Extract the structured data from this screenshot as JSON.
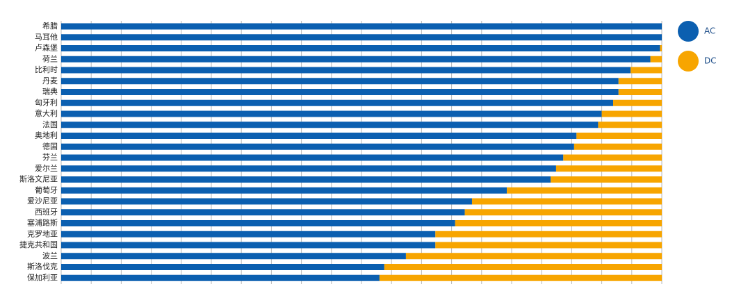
{
  "chart_data": {
    "type": "bar",
    "orientation": "horizontal",
    "stacked": true,
    "categories": [
      "希腊",
      "马耳他",
      "卢森堡",
      "荷兰",
      "比利时",
      "丹麦",
      "瑞典",
      "匈牙利",
      "意大利",
      "法国",
      "奥地利",
      "德国",
      "芬兰",
      "爱尔兰",
      "斯洛文尼亚",
      "葡萄牙",
      "爱沙尼亚",
      "西班牙",
      "塞浦路斯",
      "克罗地亚",
      "捷克共和国",
      "波兰",
      "斯洛伐克",
      "保加利亚"
    ],
    "series": [
      {
        "name": "AC",
        "color": "#0b5fb0",
        "values": [
          100,
          100,
          99.7,
          98.1,
          94.8,
          92.8,
          92.8,
          91.9,
          90.0,
          89.4,
          85.8,
          85.4,
          83.6,
          82.4,
          81.5,
          74.2,
          68.4,
          67.2,
          65.6,
          62.3,
          62.3,
          57.4,
          53.8,
          53.0
        ]
      },
      {
        "name": "DC",
        "color": "#f7a500",
        "values": [
          0,
          0,
          0.3,
          1.9,
          5.2,
          7.2,
          7.2,
          8.1,
          10.0,
          10.6,
          14.2,
          14.6,
          16.4,
          17.6,
          18.5,
          25.8,
          31.6,
          32.8,
          34.4,
          37.7,
          37.7,
          42.6,
          46.2,
          47.0
        ]
      }
    ],
    "xlim": [
      0,
      100
    ],
    "xticks": [
      0,
      5,
      10,
      15,
      20,
      25,
      30,
      35,
      40,
      45,
      50,
      55,
      60,
      65,
      70,
      75,
      80,
      85,
      90,
      95,
      100
    ],
    "grid": true,
    "legend": "right"
  }
}
